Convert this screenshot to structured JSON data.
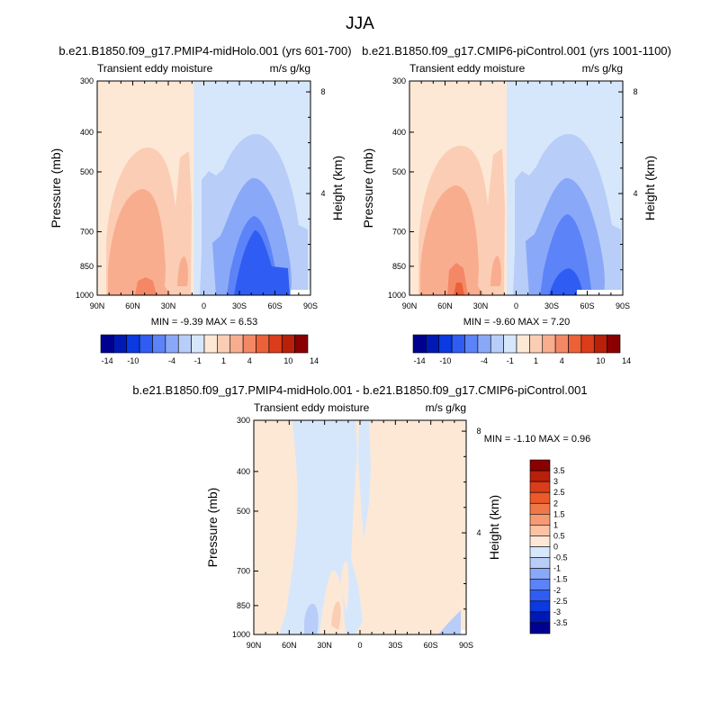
{
  "figure": {
    "title": "JJA"
  },
  "chart_data": [
    {
      "type": "contour",
      "title": "b.e21.B1850.f09_g17.PMIP4-midHolo.001 (yrs 601-700)",
      "left_string": "Transient eddy moisture",
      "right_string": "m/s g/kg",
      "ylabel": "Pressure (mb)",
      "ylabel_right": "Height (km)",
      "x_ticks": [
        "90N",
        "60N",
        "30N",
        "0",
        "30S",
        "60S",
        "90S"
      ],
      "x_values": [
        90,
        60,
        30,
        0,
        -30,
        -60,
        -90
      ],
      "y_ticks": [
        "300",
        "400",
        "500",
        "700",
        "850",
        "1000"
      ],
      "y_values": [
        300,
        400,
        500,
        700,
        850,
        1000
      ],
      "y_right_ticks": [
        "8",
        "4"
      ],
      "y_right_values": [
        8,
        4
      ],
      "ylim": [
        1000,
        300
      ],
      "xlim": [
        90,
        -90
      ],
      "min_label": "MIN =  -9.39   MAX =   6.53",
      "min": -9.39,
      "max": 6.53,
      "levels": [
        -14,
        -12,
        -10,
        -8,
        -6,
        -4,
        -2,
        -1,
        0,
        1,
        2,
        4,
        6,
        8,
        10,
        12,
        14
      ],
      "colorbar_labels": [
        "-14",
        "-10",
        "-4",
        "-1",
        "1",
        "4",
        "10",
        "14"
      ],
      "colorbar_label_values": [
        -14,
        -10,
        -4,
        -1,
        1,
        4,
        10,
        14
      ]
    },
    {
      "type": "contour",
      "title": "b.e21.B1850.f09_g17.CMIP6-piControl.001 (yrs 1001-1100)",
      "left_string": "Transient eddy moisture",
      "right_string": "m/s g/kg",
      "ylabel": "Pressure (mb)",
      "ylabel_right": "Height (km)",
      "x_ticks": [
        "90N",
        "60N",
        "30N",
        "0",
        "30S",
        "60S",
        "90S"
      ],
      "x_values": [
        90,
        60,
        30,
        0,
        -30,
        -60,
        -90
      ],
      "y_ticks": [
        "300",
        "400",
        "500",
        "700",
        "850",
        "1000"
      ],
      "y_values": [
        300,
        400,
        500,
        700,
        850,
        1000
      ],
      "y_right_ticks": [
        "8",
        "4"
      ],
      "y_right_values": [
        8,
        4
      ],
      "ylim": [
        1000,
        300
      ],
      "xlim": [
        90,
        -90
      ],
      "min_label": "MIN =  -9.60   MAX =   7.20",
      "min": -9.6,
      "max": 7.2,
      "levels": [
        -14,
        -12,
        -10,
        -8,
        -6,
        -4,
        -2,
        -1,
        0,
        1,
        2,
        4,
        6,
        8,
        10,
        12,
        14
      ],
      "colorbar_labels": [
        "-14",
        "-10",
        "-4",
        "-1",
        "1",
        "4",
        "10",
        "14"
      ],
      "colorbar_label_values": [
        -14,
        -10,
        -4,
        -1,
        1,
        4,
        10,
        14
      ]
    },
    {
      "type": "contour",
      "title": "b.e21.B1850.f09_g17.PMIP4-midHolo.001 - b.e21.B1850.f09_g17.CMIP6-piControl.001",
      "left_string": "Transient eddy moisture",
      "right_string": "m/s g/kg",
      "ylabel": "Pressure (mb)",
      "ylabel_right": "Height (km)",
      "x_ticks": [
        "90N",
        "60N",
        "30N",
        "0",
        "30S",
        "60S",
        "90S"
      ],
      "x_values": [
        90,
        60,
        30,
        0,
        -30,
        -60,
        -90
      ],
      "y_ticks": [
        "300",
        "400",
        "500",
        "700",
        "850",
        "1000"
      ],
      "y_values": [
        300,
        400,
        500,
        700,
        850,
        1000
      ],
      "y_right_ticks": [
        "8",
        "4"
      ],
      "y_right_values": [
        8,
        4
      ],
      "ylim": [
        1000,
        300
      ],
      "xlim": [
        90,
        -90
      ],
      "min_label": "MIN =  -1.10   MAX =   0.96",
      "min": -1.1,
      "max": 0.96,
      "levels": [
        -3.5,
        -3,
        -2.5,
        -2,
        -1.5,
        -1,
        -0.5,
        0,
        0.5,
        1,
        1.5,
        2,
        2.5,
        3,
        3.5
      ],
      "colorbar_labels": [
        "3.5",
        "3",
        "2.5",
        "2",
        "1.5",
        "1",
        "0.5",
        "0",
        "-0.5",
        "-1",
        "-1.5",
        "-2",
        "-2.5",
        "-3",
        "-3.5"
      ],
      "colorbar_label_values": [
        3.5,
        3,
        2.5,
        2,
        1.5,
        1,
        0.5,
        0,
        -0.5,
        -1,
        -1.5,
        -2,
        -2.5,
        -3,
        -3.5
      ]
    }
  ],
  "colors": {
    "palette16": [
      "#000090",
      "#0019b4",
      "#0a3ae0",
      "#2f5cf2",
      "#5c83f7",
      "#8aa8f8",
      "#b8cdf8",
      "#d7e7fb",
      "#fde8d6",
      "#fbcdb4",
      "#f9ad8f",
      "#f48866",
      "#ec6138",
      "#db3d1a",
      "#b8200a",
      "#8a0000"
    ],
    "fill_pos1": "#fde8d6",
    "fill_pos2": "#fbcdb4",
    "fill_pos4": "#f9ad8f",
    "fill_pos6": "#f48866",
    "fill_pos8": "#ec6138",
    "fill_neg1": "#d7e7fb",
    "fill_neg2": "#b8cdf8",
    "fill_neg4": "#8aa8f8",
    "fill_neg6": "#5c83f7",
    "fill_neg8": "#2f5cf2",
    "diff_palette": [
      "#8a0000",
      "#b8200a",
      "#db3d1a",
      "#ec5a2a",
      "#f07848",
      "#f59a72",
      "#fbc3a4",
      "#fde8d6",
      "#d7e7fb",
      "#b8cdf8",
      "#8aa8f8",
      "#5c83f7",
      "#2f5cf2",
      "#0a3ae0",
      "#0019b4",
      "#000090"
    ]
  }
}
